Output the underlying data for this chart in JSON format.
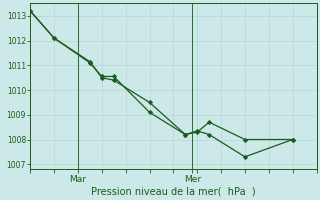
{
  "xlabel": "Pression niveau de la mer(  hPa  )",
  "bg_color": "#cce8e8",
  "grid_color": "#b8d8d8",
  "line_color": "#1a5c1a",
  "vline_color": "#2a6b2a",
  "ylim": [
    1006.8,
    1013.5
  ],
  "yticks": [
    1007,
    1008,
    1009,
    1010,
    1011,
    1012,
    1013
  ],
  "xlim": [
    0,
    12
  ],
  "series1_x": [
    0.0,
    1.0,
    2.5,
    3.0,
    3.5,
    5.0,
    6.5,
    7.0,
    7.5,
    9.0,
    11.0
  ],
  "series1_y": [
    1013.2,
    1012.1,
    1011.1,
    1010.55,
    1010.55,
    1009.1,
    1008.2,
    1008.3,
    1008.7,
    1008.0,
    1008.0
  ],
  "series2_x": [
    0.0,
    1.0,
    2.5,
    3.0,
    3.5,
    5.0,
    6.5,
    7.0,
    7.5,
    9.0,
    11.0
  ],
  "series2_y": [
    1013.2,
    1012.1,
    1011.15,
    1010.5,
    1010.4,
    1009.5,
    1008.2,
    1008.35,
    1008.2,
    1007.3,
    1008.0
  ],
  "mar_x": 2.0,
  "mer_x": 6.8,
  "xtick_positions": [
    2.0,
    6.8
  ],
  "xtick_labels": [
    "Mar",
    "Mer"
  ],
  "ytick_fontsize": 5.5,
  "xtick_fontsize": 6.5,
  "xlabel_fontsize": 7.0
}
